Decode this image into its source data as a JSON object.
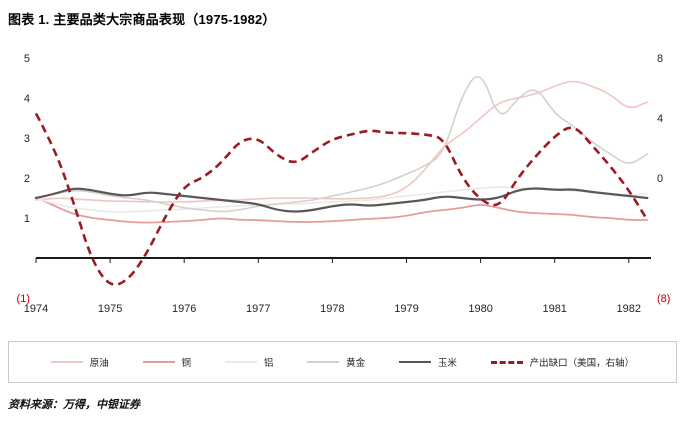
{
  "footer": {
    "source": "资料来源：万得，中银证券"
  },
  "colors": {
    "axis": "#1a1a1a",
    "tick_text": "#262626",
    "negative_tick": "#c00000",
    "legend_border": "#c9c9c9"
  },
  "chart_data": {
    "type": "line",
    "title": "图表 1. 主要品类大宗商品表现（1975-1982）",
    "grid": false,
    "legend_position": "bottom",
    "x_range": [
      1974,
      1982.3
    ],
    "x_ticks": [
      "1974",
      "1975",
      "1976",
      "1977",
      "1978",
      "1979",
      "1980",
      "1981",
      "1982"
    ],
    "x_tick_values": [
      1974,
      1975,
      1976,
      1977,
      1978,
      1979,
      1980,
      1981,
      1982
    ],
    "axis_line_value": 0,
    "left_axis": {
      "min": -1,
      "max": 5,
      "ticks": [
        {
          "label": "5",
          "value": 5
        },
        {
          "label": "4",
          "value": 4
        },
        {
          "label": "3",
          "value": 3
        },
        {
          "label": "2",
          "value": 2
        },
        {
          "label": "1",
          "value": 1
        },
        {
          "label": "(1)",
          "value": -1,
          "negative": true
        }
      ]
    },
    "right_axis": {
      "min": -8,
      "max": 8,
      "ticks": [
        {
          "label": "8",
          "value": 8
        },
        {
          "label": "4",
          "value": 4
        },
        {
          "label": "0",
          "value": 0
        },
        {
          "label": "(8)",
          "value": -8,
          "negative": true
        }
      ]
    },
    "x": [
      1974,
      1974.25,
      1974.5,
      1974.75,
      1975,
      1975.25,
      1975.5,
      1975.75,
      1976,
      1976.25,
      1976.5,
      1976.75,
      1977,
      1977.25,
      1977.5,
      1977.75,
      1978,
      1978.25,
      1978.5,
      1978.75,
      1979,
      1979.25,
      1979.5,
      1979.75,
      1980,
      1980.25,
      1980.5,
      1980.75,
      1981,
      1981.25,
      1981.5,
      1981.75,
      1982,
      1982.25
    ],
    "series": [
      {
        "id": "crude-oil",
        "name": "原油",
        "color": "#f0c6c1",
        "width": 1.6,
        "axis": "left",
        "y": [
          1.45,
          1.5,
          1.48,
          1.45,
          1.42,
          1.42,
          1.4,
          1.4,
          1.4,
          1.42,
          1.45,
          1.45,
          1.48,
          1.5,
          1.5,
          1.5,
          1.48,
          1.48,
          1.5,
          1.55,
          1.75,
          2.2,
          2.8,
          3.1,
          3.5,
          3.9,
          4.0,
          4.1,
          4.3,
          4.45,
          4.3,
          4.1,
          3.7,
          3.9
        ]
      },
      {
        "id": "copper",
        "name": "铜",
        "color": "#e49c9c",
        "width": 1.8,
        "axis": "left",
        "y": [
          1.52,
          1.3,
          1.1,
          1.0,
          0.95,
          0.9,
          0.88,
          0.9,
          0.92,
          0.95,
          1.0,
          0.95,
          0.95,
          0.92,
          0.9,
          0.9,
          0.92,
          0.95,
          0.98,
          1.0,
          1.05,
          1.15,
          1.2,
          1.25,
          1.35,
          1.25,
          1.15,
          1.12,
          1.1,
          1.08,
          1.02,
          1.0,
          0.95,
          0.95
        ]
      },
      {
        "id": "aluminum",
        "name": "铝",
        "color": "#ece8e7",
        "width": 1.6,
        "axis": "left",
        "y": [
          1.5,
          1.35,
          1.25,
          1.2,
          1.15,
          1.15,
          1.18,
          1.2,
          1.22,
          1.25,
          1.28,
          1.3,
          1.32,
          1.35,
          1.35,
          1.38,
          1.4,
          1.42,
          1.45,
          1.5,
          1.55,
          1.6,
          1.65,
          1.7,
          1.75,
          1.78,
          1.75,
          1.72,
          1.7,
          1.68,
          1.65,
          1.6,
          1.58,
          1.6
        ]
      },
      {
        "id": "gold",
        "name": "黄金",
        "color": "#d3d1d0",
        "width": 1.6,
        "axis": "left",
        "y": [
          1.5,
          1.6,
          1.7,
          1.65,
          1.55,
          1.5,
          1.45,
          1.35,
          1.25,
          1.2,
          1.15,
          1.2,
          1.3,
          1.35,
          1.4,
          1.45,
          1.55,
          1.65,
          1.75,
          1.9,
          2.1,
          2.3,
          2.6,
          4.1,
          4.75,
          3.4,
          4.0,
          4.3,
          3.6,
          3.3,
          2.9,
          2.6,
          2.3,
          2.6
        ]
      },
      {
        "id": "corn",
        "name": "玉米",
        "color": "#5a5857",
        "width": 2.2,
        "axis": "left",
        "y": [
          1.5,
          1.6,
          1.75,
          1.7,
          1.6,
          1.55,
          1.65,
          1.6,
          1.55,
          1.5,
          1.45,
          1.4,
          1.35,
          1.2,
          1.15,
          1.2,
          1.3,
          1.35,
          1.3,
          1.35,
          1.4,
          1.45,
          1.55,
          1.5,
          1.45,
          1.5,
          1.7,
          1.75,
          1.7,
          1.72,
          1.65,
          1.6,
          1.55,
          1.5
        ]
      },
      {
        "id": "output-gap-us",
        "name": "产出缺口（美国，右轴）",
        "color": "#9b1b23",
        "width": 2.6,
        "dash": "8 5",
        "axis": "right",
        "y": [
          4.3,
          2.0,
          -1.5,
          -5.5,
          -7.3,
          -6.8,
          -5.0,
          -2.5,
          -0.5,
          0.0,
          1.0,
          2.5,
          2.7,
          1.5,
          0.9,
          1.8,
          2.6,
          2.9,
          3.2,
          3.0,
          3.0,
          2.9,
          2.7,
          0.0,
          -1.5,
          -2.0,
          0.0,
          1.5,
          2.8,
          3.6,
          2.2,
          0.8,
          -0.8,
          -2.8
        ]
      }
    ]
  }
}
